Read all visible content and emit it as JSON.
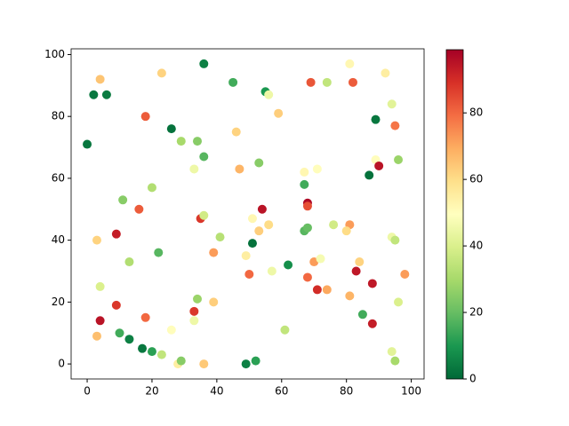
{
  "chart_data": {
    "type": "scatter",
    "x": [
      0,
      2,
      6,
      4,
      23,
      36,
      45,
      55,
      56,
      69,
      74,
      82,
      81,
      92,
      94,
      95,
      89,
      18,
      26,
      29,
      34,
      36,
      46,
      59,
      33,
      47,
      53,
      20,
      67,
      71,
      67,
      89,
      90,
      96,
      87,
      11,
      16,
      3,
      9,
      35,
      36,
      41,
      51,
      56,
      53,
      54,
      51,
      68,
      68,
      67,
      68,
      76,
      81,
      80,
      94,
      95,
      4,
      13,
      22,
      39,
      49,
      50,
      57,
      62,
      70,
      72,
      68,
      71,
      74,
      83,
      84,
      88,
      81,
      85,
      88,
      96,
      98,
      4,
      9,
      18,
      3,
      10,
      13,
      17,
      20,
      23,
      26,
      28,
      29,
      33,
      33,
      34,
      39,
      36,
      49,
      52,
      61,
      94,
      95
    ],
    "values": [
      71,
      87,
      87,
      92,
      94,
      97,
      91,
      88,
      87,
      91,
      91,
      91,
      97,
      94,
      84,
      77,
      79,
      80,
      76,
      72,
      72,
      67,
      75,
      81,
      63,
      63,
      65,
      57,
      62,
      63,
      58,
      66,
      64,
      66,
      61,
      53,
      50,
      40,
      42,
      47,
      48,
      41,
      47,
      45,
      43,
      50,
      39,
      52,
      51,
      43,
      44,
      45,
      45,
      43,
      41,
      40,
      25,
      33,
      36,
      36,
      35,
      29,
      30,
      32,
      33,
      34,
      28,
      24,
      24,
      30,
      33,
      26,
      22,
      16,
      13,
      20,
      29,
      14,
      19,
      15,
      9,
      10,
      8,
      5,
      4,
      3,
      11,
      0,
      1,
      17,
      14,
      21,
      20,
      0,
      0,
      1,
      11,
      4,
      1
    ],
    "c": [
      3,
      3,
      4,
      65,
      62,
      5,
      15,
      10,
      45,
      83,
      35,
      82,
      52,
      55,
      42,
      78,
      3,
      82,
      2,
      30,
      25,
      18,
      62,
      63,
      45,
      68,
      25,
      32,
      52,
      50,
      15,
      50,
      95,
      28,
      2,
      25,
      82,
      62,
      93,
      88,
      38,
      33,
      52,
      60,
      63,
      95,
      2,
      97,
      84,
      18,
      20,
      38,
      72,
      60,
      45,
      35,
      40,
      32,
      18,
      72,
      55,
      80,
      45,
      8,
      72,
      47,
      80,
      90,
      70,
      94,
      62,
      94,
      68,
      15,
      93,
      40,
      72,
      95,
      88,
      80,
      66,
      15,
      5,
      3,
      12,
      35,
      50,
      55,
      25,
      88,
      45,
      28,
      63,
      64,
      5,
      12,
      35,
      42,
      30
    ],
    "cmap": [
      "#006837",
      "#1a9850",
      "#66bd63",
      "#a6d96a",
      "#d9ef8b",
      "#ffffbf",
      "#fee08b",
      "#fdae61",
      "#f46d43",
      "#d73027",
      "#a50026"
    ],
    "clim": [
      0,
      99
    ],
    "cticks": [
      0,
      20,
      40,
      60,
      80
    ],
    "xlim": [
      -4.95,
      103.95
    ],
    "xticks": [
      0,
      20,
      40,
      60,
      80,
      100
    ],
    "ylim": [
      -4.85,
      101.85
    ],
    "yticks": [
      0,
      20,
      40,
      60,
      80,
      100
    ]
  }
}
